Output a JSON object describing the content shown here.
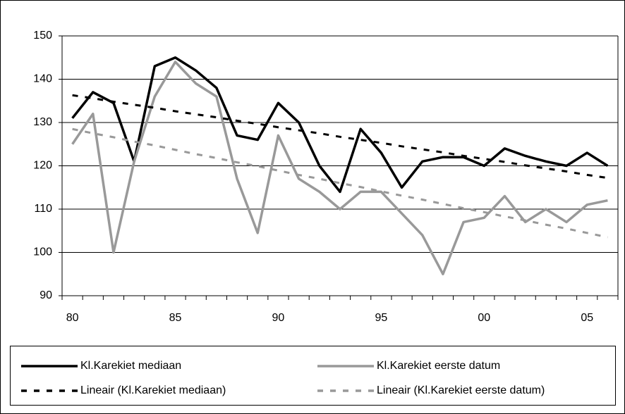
{
  "chart_data": {
    "type": "line",
    "categories": [
      "80",
      null,
      null,
      null,
      null,
      "85",
      null,
      null,
      null,
      null,
      "90",
      null,
      null,
      null,
      null,
      "95",
      null,
      null,
      null,
      null,
      "00",
      null,
      null,
      null,
      null,
      "05",
      null
    ],
    "series": [
      {
        "name": "Kl.Karekiet mediaan",
        "color": "#000000",
        "line_style": "solid",
        "values": [
          131,
          137,
          134.5,
          121,
          143,
          145,
          142,
          138,
          127,
          126,
          134.5,
          130,
          120,
          114,
          128.5,
          123,
          115,
          121,
          122,
          122,
          120,
          124,
          122.3,
          121,
          120,
          123,
          120
        ]
      },
      {
        "name": "Kl.Karekiet eerste datum",
        "color": "#999999",
        "line_style": "solid",
        "values": [
          125,
          132,
          100,
          121,
          136,
          144,
          139,
          136,
          117,
          104.5,
          127,
          117,
          114,
          110,
          114,
          114,
          109,
          104,
          95,
          107,
          108,
          113,
          107,
          110,
          107,
          111,
          112
        ]
      },
      {
        "name": "Lineair (Kl.Karekiet mediaan)",
        "color": "#000000",
        "line_style": "dashed",
        "values": [
          136.3,
          135.6,
          134.8,
          134.1,
          133.4,
          132.6,
          131.9,
          131.2,
          130.4,
          129.7,
          128.9,
          128.2,
          127.5,
          126.7,
          126.0,
          125.3,
          124.5,
          123.8,
          123.1,
          122.3,
          121.6,
          120.9,
          120.1,
          119.4,
          118.7,
          117.9,
          117.2
        ]
      },
      {
        "name": "Lineair (Kl.Karekiet eerste datum)",
        "color": "#999999",
        "line_style": "dashed",
        "values": [
          128.5,
          127.5,
          126.6,
          125.6,
          124.7,
          123.7,
          122.7,
          121.8,
          120.8,
          119.9,
          118.9,
          117.9,
          117.0,
          116.0,
          115.1,
          114.1,
          113.1,
          112.2,
          111.2,
          110.2,
          109.3,
          108.3,
          107.4,
          106.4,
          105.5,
          104.5,
          103.5
        ]
      }
    ],
    "ylim": [
      90,
      150
    ],
    "yticks": [
      90,
      100,
      110,
      120,
      130,
      140,
      150
    ],
    "grid": true
  }
}
